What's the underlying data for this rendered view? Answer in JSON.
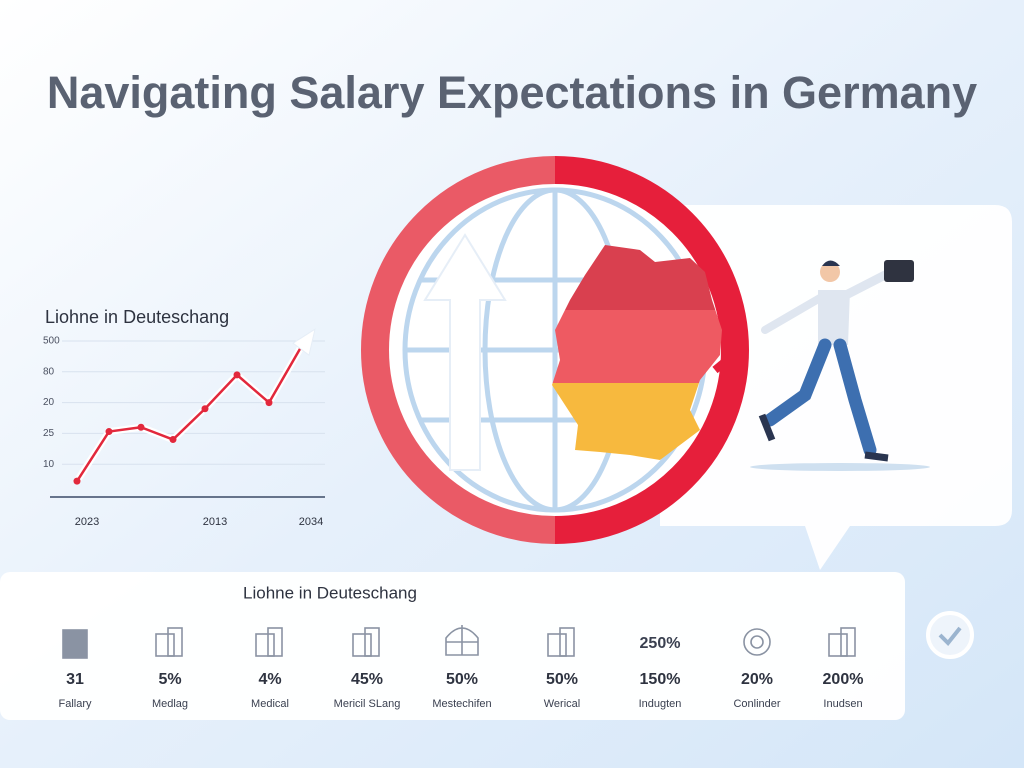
{
  "title": "Navigating Salary Expectations in Germany",
  "chart_data": {
    "type": "line",
    "title": "Liohne in Deuteschang",
    "categories": [
      "2023",
      null,
      null,
      null,
      "2013",
      null,
      null,
      "2034"
    ],
    "values": [
      0.45,
      2.06,
      2.2,
      1.8,
      2.8,
      3.9,
      3.0,
      4.8
    ],
    "color": "#e2283c",
    "ylim": [
      0,
      5
    ],
    "yticks": [
      {
        "value": 5,
        "label": "500"
      },
      {
        "value": 4,
        "label": "80"
      },
      {
        "value": 3,
        "label": "20"
      },
      {
        "value": 2,
        "label": "25"
      },
      {
        "value": 1,
        "label": "10"
      }
    ],
    "grid": true
  },
  "stats_panel": {
    "title": "Liohne in Deuteschang",
    "badge": "250%",
    "items": [
      {
        "value": "31",
        "label": "Fallary"
      },
      {
        "value": "5%",
        "label": "Medlag"
      },
      {
        "value": "4%",
        "label": "Medical"
      },
      {
        "value": "45%",
        "label": "Mericil SLang"
      },
      {
        "value": "50%",
        "label": "Mestechifen"
      },
      {
        "value": "50%",
        "label": "Werical"
      },
      {
        "value": "150%",
        "label": "Indugten"
      },
      {
        "value": "20%",
        "label": "Conlinder"
      },
      {
        "value": "200%",
        "label": "Inudsen"
      }
    ]
  }
}
